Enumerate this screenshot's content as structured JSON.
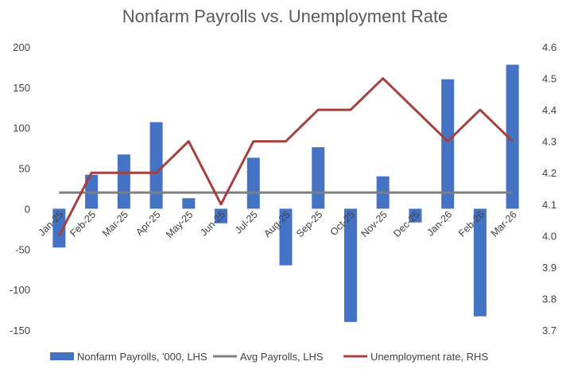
{
  "chart_data": {
    "type": "bar+line",
    "title": "Nonfarm Payrolls vs. Unemployment Rate",
    "categories": [
      "Jan-25",
      "Feb-25",
      "Mar-25",
      "Apr-25",
      "May-25",
      "Jun-25",
      "Jul-25",
      "Aug-25",
      "Sep-25",
      "Oct-25",
      "Nov-25",
      "Dec-25",
      "Jan-26",
      "Feb-26",
      "Mar-26"
    ],
    "y_left": {
      "min": -150,
      "max": 200,
      "step": 50,
      "ticks": [
        "200",
        "150",
        "100",
        "50",
        "0",
        "-50",
        "-100",
        "-150"
      ]
    },
    "y_right": {
      "min": 3.7,
      "max": 4.6,
      "step": 0.1,
      "ticks": [
        "4.6",
        "4.5",
        "4.4",
        "4.3",
        "4.2",
        "4.1",
        "4.0",
        "3.9",
        "3.8",
        "3.7"
      ]
    },
    "series": [
      {
        "name": "Nonfarm Payrolls, '000, LHS",
        "type": "bar",
        "axis": "left",
        "color": "#4472C4",
        "values": [
          -48,
          42,
          67,
          107,
          13,
          -18,
          63,
          -70,
          76,
          -140,
          40,
          -17,
          160,
          -133,
          178
        ]
      },
      {
        "name": "Avg Payrolls, LHS",
        "type": "line",
        "axis": "left",
        "color": "#7F7F7F",
        "values": [
          20,
          20,
          20,
          20,
          20,
          20,
          20,
          20,
          20,
          20,
          20,
          20,
          20,
          20,
          20
        ]
      },
      {
        "name": "Unemployment rate, RHS",
        "type": "line",
        "axis": "right",
        "color": "#A5403C",
        "values": [
          4.0,
          4.2,
          4.2,
          4.2,
          4.3,
          4.1,
          4.3,
          4.3,
          4.4,
          4.4,
          4.5,
          4.4,
          4.3,
          4.4,
          4.3
        ]
      }
    ],
    "legend": "bottom",
    "grid": false
  }
}
